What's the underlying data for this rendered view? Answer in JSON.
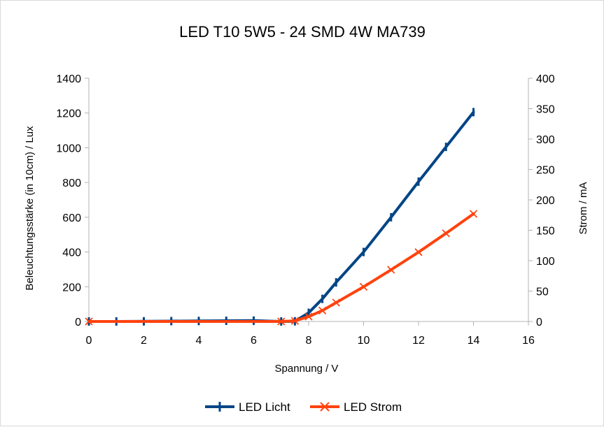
{
  "chart_data": {
    "type": "line",
    "title": "LED T10 5W5 - 24 SMD 4W MA739",
    "xlabel": "Spannung / V",
    "ylabel": "Beleuchtungsstärke (in 10cm) / Lux",
    "y2label": "Strom / mA",
    "xlim": [
      0,
      16
    ],
    "ylim": [
      0,
      1400
    ],
    "y2lim": [
      0,
      400
    ],
    "xticks": [
      "0",
      "2",
      "4",
      "6",
      "8",
      "10",
      "12",
      "14",
      "16"
    ],
    "yticks": [
      "0",
      "200",
      "400",
      "600",
      "800",
      "1000",
      "1200",
      "1400"
    ],
    "y2ticks": [
      "0",
      "50",
      "100",
      "150",
      "200",
      "250",
      "300",
      "350",
      "400"
    ],
    "grid": false,
    "legend_position": "bottom",
    "series": [
      {
        "name": "LED Licht",
        "axis": "left",
        "color": "#004586",
        "marker": "vertical-bar",
        "x": [
          0,
          1,
          2,
          3,
          4,
          5,
          6,
          7,
          7.5,
          8,
          8.5,
          9,
          10,
          11,
          12,
          13,
          14
        ],
        "y": [
          0,
          0,
          1,
          2,
          3,
          4,
          5,
          0,
          1,
          50,
          130,
          225,
          400,
          600,
          805,
          1005,
          1205
        ]
      },
      {
        "name": "LED Strom",
        "axis": "right",
        "color": "#ff420e",
        "marker": "x",
        "x": [
          0,
          7,
          7.5,
          8,
          8.5,
          9,
          10,
          11,
          12,
          13,
          14
        ],
        "y": [
          0,
          0,
          1,
          8,
          18,
          31,
          57,
          85,
          114,
          145,
          177
        ]
      }
    ]
  }
}
